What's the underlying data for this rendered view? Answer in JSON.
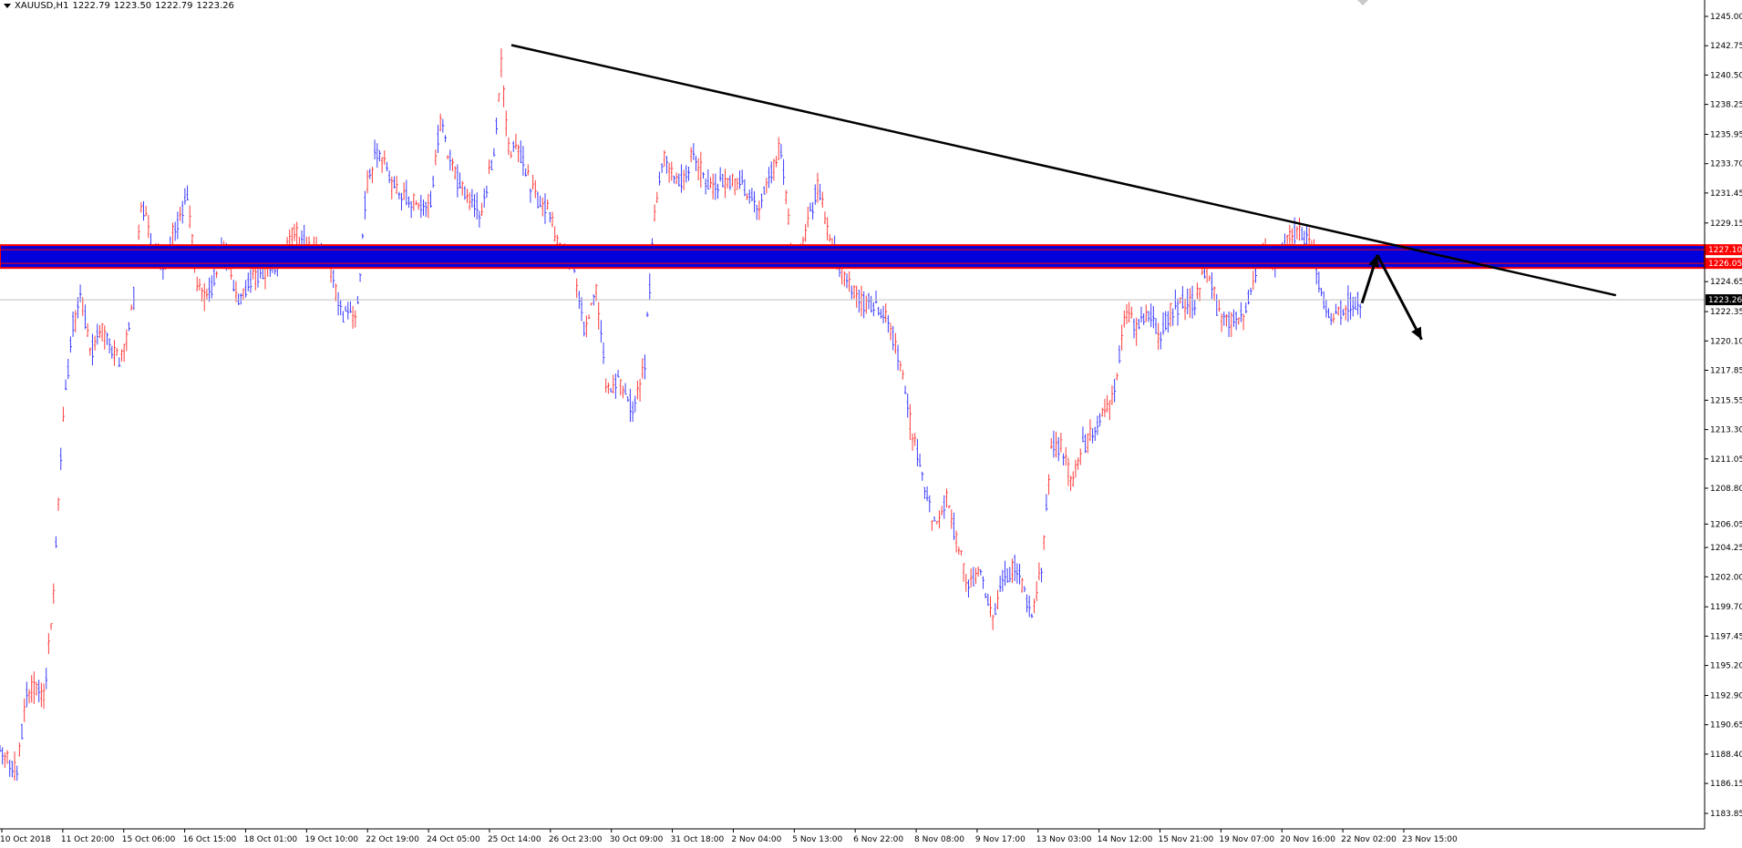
{
  "header": {
    "symbol": "XAUUSD,H1",
    "open": "1222.79",
    "high": "1223.50",
    "low": "1222.79",
    "close": "1223.26"
  },
  "colors": {
    "background": "#ffffff",
    "bull": "#ff3b3b",
    "bear": "#3b3bff",
    "zone": "#0000dd",
    "zone_border": "#ff0000",
    "trendline": "#000000",
    "last_price_bg": "#000000"
  },
  "chart_data": {
    "type": "candlestick",
    "symbol": "XAUUSD",
    "timeframe": "H1",
    "ylim": [
      1183.85,
      1245.0
    ],
    "y_ticks": [
      "1245.00",
      "1242.75",
      "1240.50",
      "1238.25",
      "1235.95",
      "1233.70",
      "1231.45",
      "1229.15",
      "1226.90",
      "1224.65",
      "1222.35",
      "1220.10",
      "1217.85",
      "1215.55",
      "1213.30",
      "1211.05",
      "1208.80",
      "1206.05",
      "1204.25",
      "1202.00",
      "1199.70",
      "1197.45",
      "1195.20",
      "1192.90",
      "1190.65",
      "1188.40",
      "1186.15",
      "1183.85"
    ],
    "x_ticks": [
      "10 Oct 2018",
      "11 Oct 20:00",
      "15 Oct 06:00",
      "16 Oct 15:00",
      "18 Oct 01:00",
      "19 Oct 10:00",
      "22 Oct 19:00",
      "24 Oct 05:00",
      "25 Oct 14:00",
      "26 Oct 23:00",
      "30 Oct 09:00",
      "31 Oct 18:00",
      "2 Nov 04:00",
      "5 Nov 13:00",
      "6 Nov 22:00",
      "8 Nov 08:00",
      "9 Nov 17:00",
      "13 Nov 03:00",
      "14 Nov 12:00",
      "15 Nov 21:00",
      "19 Nov 07:00",
      "20 Nov 16:00",
      "22 Nov 02:00",
      "23 Nov 15:00"
    ],
    "price_path": [
      {
        "x": 0.0,
        "p": 1189.0
      },
      {
        "x": 1.0,
        "p": 1187.0
      },
      {
        "x": 1.6,
        "p": 1193.5
      },
      {
        "x": 2.6,
        "p": 1193.0
      },
      {
        "x": 3.1,
        "p": 1200.0
      },
      {
        "x": 3.6,
        "p": 1212.0
      },
      {
        "x": 4.2,
        "p": 1221.0
      },
      {
        "x": 4.8,
        "p": 1223.5
      },
      {
        "x": 5.3,
        "p": 1219.0
      },
      {
        "x": 5.9,
        "p": 1221.0
      },
      {
        "x": 7.1,
        "p": 1218.5
      },
      {
        "x": 7.8,
        "p": 1223.0
      },
      {
        "x": 8.3,
        "p": 1231.0
      },
      {
        "x": 8.9,
        "p": 1227.0
      },
      {
        "x": 9.6,
        "p": 1226.0
      },
      {
        "x": 10.3,
        "p": 1229.0
      },
      {
        "x": 11.0,
        "p": 1231.0
      },
      {
        "x": 11.6,
        "p": 1224.0
      },
      {
        "x": 12.1,
        "p": 1223.0
      },
      {
        "x": 13.1,
        "p": 1227.0
      },
      {
        "x": 14.1,
        "p": 1223.0
      },
      {
        "x": 14.9,
        "p": 1225.0
      },
      {
        "x": 16.2,
        "p": 1226.0
      },
      {
        "x": 17.2,
        "p": 1228.5
      },
      {
        "x": 18.2,
        "p": 1227.0
      },
      {
        "x": 19.3,
        "p": 1226.0
      },
      {
        "x": 20.1,
        "p": 1222.0
      },
      {
        "x": 20.9,
        "p": 1222.0
      },
      {
        "x": 21.5,
        "p": 1232.0
      },
      {
        "x": 22.2,
        "p": 1235.0
      },
      {
        "x": 22.9,
        "p": 1232.0
      },
      {
        "x": 24.0,
        "p": 1231.0
      },
      {
        "x": 25.2,
        "p": 1230.0
      },
      {
        "x": 25.8,
        "p": 1237.0
      },
      {
        "x": 26.6,
        "p": 1233.0
      },
      {
        "x": 27.5,
        "p": 1231.0
      },
      {
        "x": 28.2,
        "p": 1230.0
      },
      {
        "x": 29.0,
        "p": 1234.5
      },
      {
        "x": 29.4,
        "p": 1241.5
      },
      {
        "x": 29.8,
        "p": 1235.0
      },
      {
        "x": 30.7,
        "p": 1234.0
      },
      {
        "x": 31.4,
        "p": 1231.0
      },
      {
        "x": 32.2,
        "p": 1230.0
      },
      {
        "x": 32.8,
        "p": 1227.0
      },
      {
        "x": 33.6,
        "p": 1226.0
      },
      {
        "x": 34.3,
        "p": 1221.0
      },
      {
        "x": 35.0,
        "p": 1224.0
      },
      {
        "x": 35.6,
        "p": 1216.0
      },
      {
        "x": 36.3,
        "p": 1217.0
      },
      {
        "x": 37.1,
        "p": 1215.0
      },
      {
        "x": 37.8,
        "p": 1218.0
      },
      {
        "x": 38.4,
        "p": 1230.0
      },
      {
        "x": 39.0,
        "p": 1234.5
      },
      {
        "x": 39.9,
        "p": 1232.0
      },
      {
        "x": 40.7,
        "p": 1234.5
      },
      {
        "x": 41.5,
        "p": 1232.0
      },
      {
        "x": 42.7,
        "p": 1232.5
      },
      {
        "x": 43.6,
        "p": 1232.0
      },
      {
        "x": 44.5,
        "p": 1230.0
      },
      {
        "x": 45.2,
        "p": 1233.0
      },
      {
        "x": 45.8,
        "p": 1235.0
      },
      {
        "x": 46.5,
        "p": 1226.0
      },
      {
        "x": 47.2,
        "p": 1228.0
      },
      {
        "x": 48.0,
        "p": 1232.0
      },
      {
        "x": 48.6,
        "p": 1228.0
      },
      {
        "x": 49.2,
        "p": 1226.0
      },
      {
        "x": 49.9,
        "p": 1224.5
      },
      {
        "x": 50.6,
        "p": 1223.0
      },
      {
        "x": 51.4,
        "p": 1223.0
      },
      {
        "x": 52.1,
        "p": 1221.5
      },
      {
        "x": 52.8,
        "p": 1218.5
      },
      {
        "x": 53.5,
        "p": 1213.0
      },
      {
        "x": 54.1,
        "p": 1210.0
      },
      {
        "x": 54.8,
        "p": 1206.0
      },
      {
        "x": 55.5,
        "p": 1208.0
      },
      {
        "x": 56.1,
        "p": 1205.0
      },
      {
        "x": 56.8,
        "p": 1201.0
      },
      {
        "x": 57.5,
        "p": 1203.0
      },
      {
        "x": 58.2,
        "p": 1198.5
      },
      {
        "x": 58.9,
        "p": 1202.0
      },
      {
        "x": 59.6,
        "p": 1203.0
      },
      {
        "x": 60.5,
        "p": 1199.0
      },
      {
        "x": 61.1,
        "p": 1203.0
      },
      {
        "x": 61.7,
        "p": 1212.0
      },
      {
        "x": 62.3,
        "p": 1212.0
      },
      {
        "x": 62.9,
        "p": 1209.0
      },
      {
        "x": 63.5,
        "p": 1212.0
      },
      {
        "x": 64.1,
        "p": 1213.0
      },
      {
        "x": 64.8,
        "p": 1215.0
      },
      {
        "x": 65.4,
        "p": 1216.0
      },
      {
        "x": 66.0,
        "p": 1222.5
      },
      {
        "x": 66.7,
        "p": 1221.0
      },
      {
        "x": 67.4,
        "p": 1222.0
      },
      {
        "x": 68.0,
        "p": 1220.5
      },
      {
        "x": 68.7,
        "p": 1222.5
      },
      {
        "x": 69.4,
        "p": 1223.0
      },
      {
        "x": 70.1,
        "p": 1223.0
      },
      {
        "x": 70.8,
        "p": 1226.0
      },
      {
        "x": 71.5,
        "p": 1222.0
      },
      {
        "x": 72.2,
        "p": 1221.5
      },
      {
        "x": 72.9,
        "p": 1222.0
      },
      {
        "x": 73.5,
        "p": 1225.0
      },
      {
        "x": 74.2,
        "p": 1227.0
      },
      {
        "x": 74.9,
        "p": 1226.0
      },
      {
        "x": 75.6,
        "p": 1228.0
      },
      {
        "x": 76.3,
        "p": 1228.5
      },
      {
        "x": 77.0,
        "p": 1227.5
      },
      {
        "x": 77.6,
        "p": 1223.0
      },
      {
        "x": 78.3,
        "p": 1222.0
      },
      {
        "x": 79.0,
        "p": 1223.0
      },
      {
        "x": 79.8,
        "p": 1223.26
      }
    ],
    "zone": {
      "top": 1227.1,
      "bottom": 1226.05
    },
    "trendline": {
      "start": {
        "x": 30.0,
        "p": 1242.8
      },
      "end": {
        "x": 94.8,
        "p": 1223.6
      }
    },
    "price_labels": {
      "zone_top": "1227.10",
      "zone_bottom": "1226.05",
      "last": "1223.26"
    },
    "last_price": 1223.26,
    "projection": [
      {
        "x": 79.9,
        "p": 1223.0
      },
      {
        "x": 80.8,
        "p": 1226.7
      },
      {
        "x": 83.4,
        "p": 1220.2
      }
    ]
  }
}
